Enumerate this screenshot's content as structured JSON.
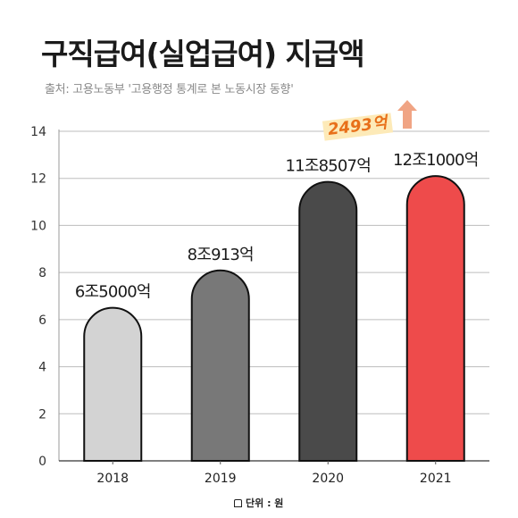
{
  "title": "구직급여(실업급여) 지급액",
  "source": "출처: 고용노동부 '고용행정 통계로 본 노동시장 동향'",
  "unit_label": "단위 : 원",
  "increase_label": "2493억",
  "chart_data": {
    "type": "bar",
    "categories": [
      "2018",
      "2019",
      "2020",
      "2021"
    ],
    "values": [
      6.5,
      8.09,
      11.85,
      12.1
    ],
    "data_labels": [
      "6조5000억",
      "8조913억",
      "11조8507억",
      "12조1000억"
    ],
    "bar_colors": [
      "#d3d3d3",
      "#787878",
      "#4a4a4a",
      "#ee4b4b"
    ],
    "arrow_color": "#f0a484",
    "yticks": [
      0,
      2,
      4,
      6,
      8,
      10,
      12,
      14
    ],
    "ylim": [
      0,
      14
    ],
    "grid": true
  }
}
